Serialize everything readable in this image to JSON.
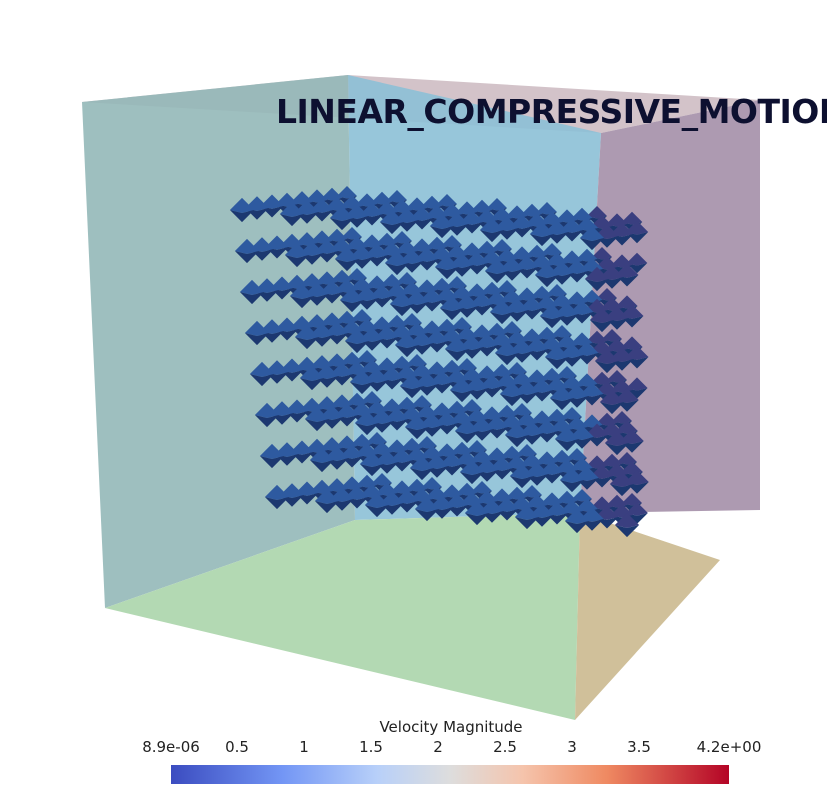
{
  "title": "LINEAR_COMPRESSIVE_MOTION",
  "legend": {
    "title": "Velocity Magnitude",
    "tick_labels": [
      "8.9e-06",
      "0.5",
      "1",
      "1.5",
      "2",
      "2.5",
      "3",
      "3.5",
      "4.2e+00"
    ],
    "range": [
      8.9e-06,
      4.2
    ],
    "colormap": [
      "#3b4cc0",
      "#b40426"
    ]
  },
  "colors": {
    "glyph": "#2e5aa0",
    "glyph_dark": "#1c3870",
    "face_left": "#8fb3b8",
    "face_back": "#8cc0d6",
    "face_right": "#a795b0",
    "face_bottom": "#b3d9b3",
    "face_top": "#cbb8c0"
  }
}
